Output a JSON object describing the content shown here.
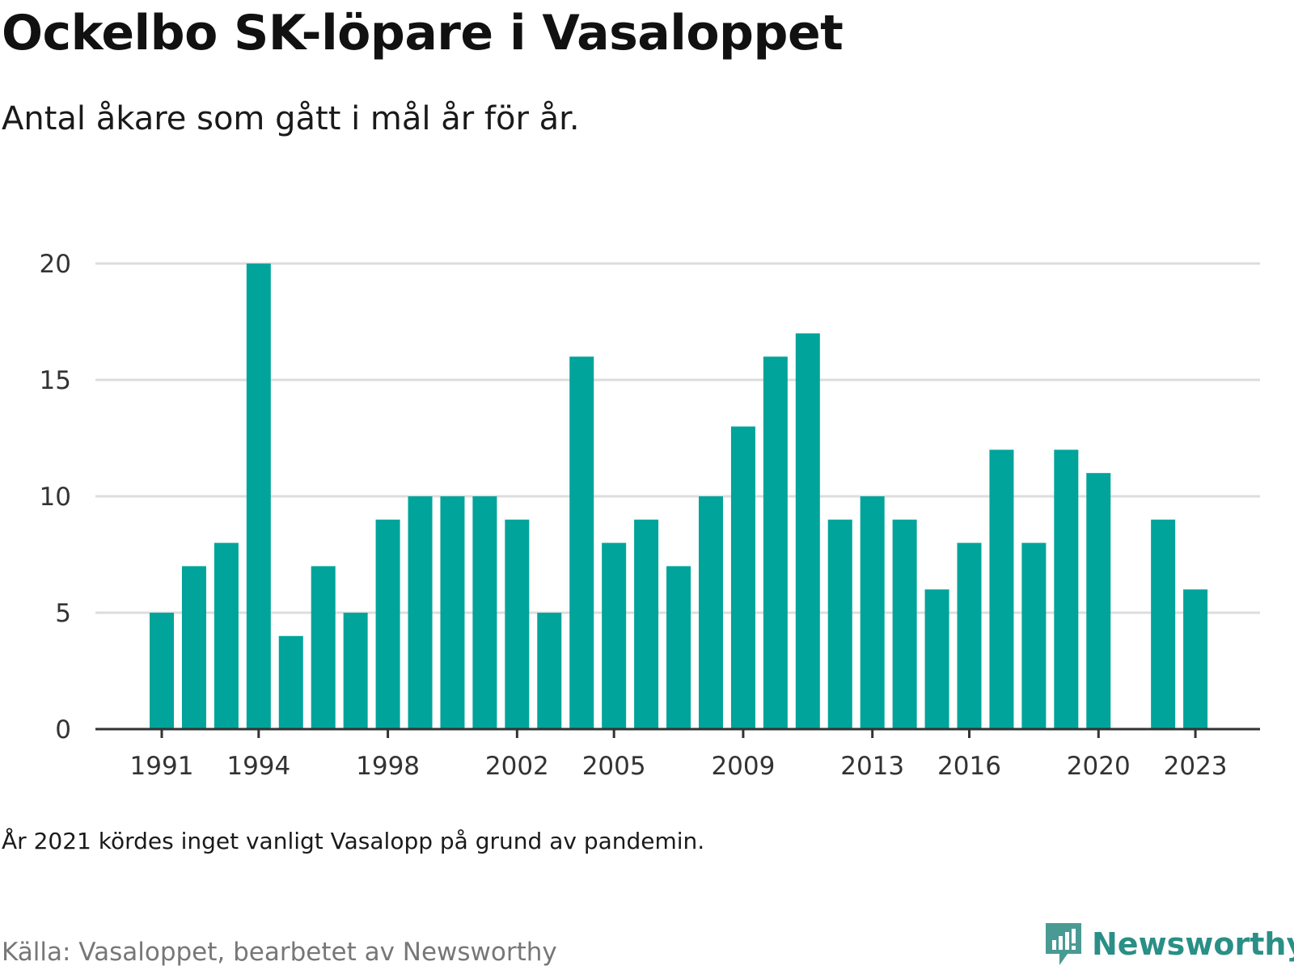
{
  "header": {
    "title": "Ockelbo SK-löpare i Vasaloppet",
    "subtitle": "Antal åkare som gått i mål år för år."
  },
  "footer": {
    "note": "År 2021 kördes inget vanligt Vasalopp på grund av pandemin.",
    "source": "Källa: Vasaloppet, bearbetet av Newsworthy",
    "brand": "Newsworthy",
    "brand_icon": "newsworthy-logo-icon"
  },
  "colors": {
    "bar": "#00a49a",
    "grid": "#dddddd",
    "axis": "#333333",
    "brand": "#2a8f86"
  },
  "chart_data": {
    "type": "bar",
    "title": "Ockelbo SK-löpare i Vasaloppet",
    "subtitle": "Antal åkare som gått i mål år för år.",
    "xlabel": "",
    "ylabel": "",
    "ylim": [
      0,
      20
    ],
    "yticks": [
      0,
      5,
      10,
      15,
      20
    ],
    "xtick_labels": [
      "1991",
      "1994",
      "1998",
      "2002",
      "2005",
      "2009",
      "2013",
      "2016",
      "2020",
      "2023"
    ],
    "grid": true,
    "categories": [
      1991,
      1992,
      1993,
      1994,
      1995,
      1996,
      1997,
      1998,
      1999,
      2000,
      2001,
      2002,
      2003,
      2004,
      2005,
      2006,
      2007,
      2008,
      2009,
      2010,
      2011,
      2012,
      2013,
      2014,
      2015,
      2016,
      2017,
      2018,
      2019,
      2020,
      2021,
      2022,
      2023
    ],
    "values": [
      5,
      7,
      8,
      20,
      4,
      7,
      5,
      9,
      10,
      10,
      10,
      9,
      5,
      16,
      8,
      9,
      7,
      10,
      13,
      16,
      17,
      9,
      10,
      9,
      6,
      8,
      12,
      8,
      12,
      11,
      null,
      9,
      6
    ]
  }
}
